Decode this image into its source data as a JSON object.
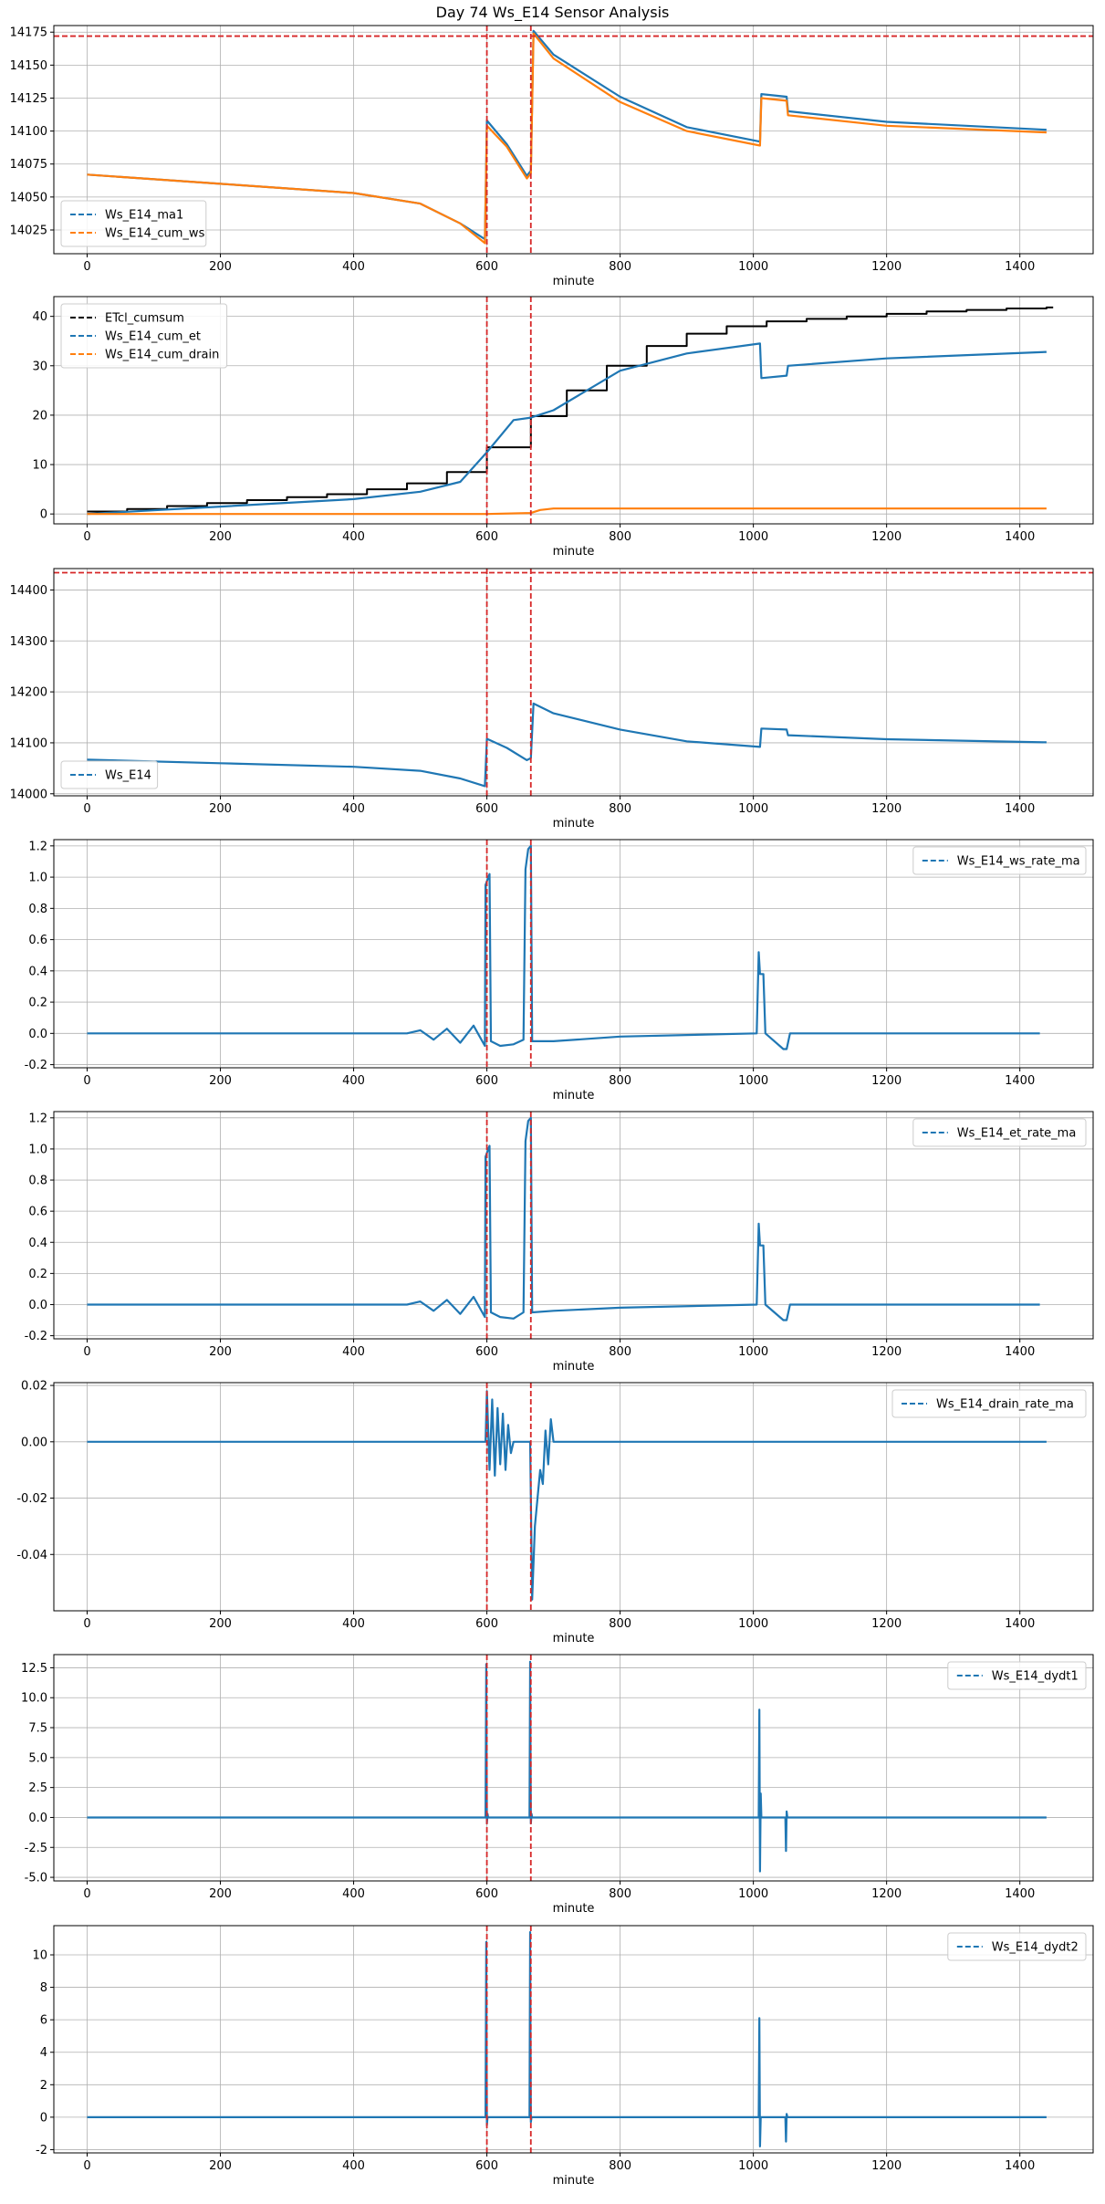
{
  "figure": {
    "title": "Day 74 Ws_E14 Sensor Analysis"
  },
  "colors": {
    "blue": "#1f77b4",
    "orange": "#ff7f0e",
    "black": "#000000",
    "red": "#d62728",
    "grid": "#b0b0b0"
  },
  "chart_data": [
    {
      "type": "line",
      "id": "p1",
      "xlabel": "minute",
      "ylabel": "",
      "xlim": [
        -50,
        1510
      ],
      "ylim": [
        14007,
        14180
      ],
      "xticks": [
        0,
        200,
        400,
        600,
        800,
        1000,
        1200,
        1400
      ],
      "yticks": [
        14025,
        14050,
        14075,
        14100,
        14125,
        14150,
        14175
      ],
      "legend_loc": "lower-left",
      "vlines": [
        600,
        666
      ],
      "hline": 14172,
      "series": [
        {
          "name": "Ws_E14_ma1",
          "color": "blue",
          "x": [
            0,
            200,
            400,
            500,
            560,
            597,
            600,
            630,
            660,
            666,
            670,
            700,
            800,
            900,
            1010,
            1012,
            1050,
            1052,
            1200,
            1440
          ],
          "y": [
            14067,
            14060,
            14053,
            14045,
            14030,
            14018,
            14108,
            14090,
            14066,
            14070,
            14176,
            14158,
            14126,
            14103,
            14092,
            14128,
            14126,
            14115,
            14107,
            14101
          ]
        },
        {
          "name": "Ws_E14_cum_ws",
          "color": "orange",
          "x": [
            0,
            200,
            400,
            500,
            560,
            597,
            600,
            630,
            660,
            666,
            670,
            700,
            800,
            900,
            1010,
            1012,
            1050,
            1052,
            1200,
            1440
          ],
          "y": [
            14067,
            14060,
            14053,
            14045,
            14030,
            14015,
            14104,
            14088,
            14064,
            14068,
            14174,
            14155,
            14122,
            14100,
            14089,
            14125,
            14123,
            14112,
            14104,
            14099
          ]
        }
      ]
    },
    {
      "type": "line",
      "id": "p2",
      "xlabel": "minute",
      "ylabel": "",
      "xlim": [
        -50,
        1510
      ],
      "ylim": [
        -2,
        44
      ],
      "xticks": [
        0,
        200,
        400,
        600,
        800,
        1000,
        1200,
        1400
      ],
      "yticks": [
        0,
        10,
        20,
        30,
        40
      ],
      "legend_loc": "upper-left",
      "vlines": [
        600,
        666
      ],
      "series": [
        {
          "name": "ETcl_cumsum",
          "color": "black",
          "step": true,
          "x": [
            0,
            60,
            120,
            180,
            240,
            300,
            360,
            420,
            480,
            540,
            600,
            666,
            720,
            780,
            840,
            900,
            960,
            1020,
            1080,
            1140,
            1200,
            1260,
            1320,
            1380,
            1440
          ],
          "y": [
            0.5,
            1.0,
            1.6,
            2.2,
            2.8,
            3.4,
            4.0,
            5.0,
            6.2,
            8.5,
            13.5,
            19.8,
            25.0,
            30.0,
            34.0,
            36.5,
            38.0,
            39.0,
            39.5,
            40.0,
            40.5,
            41.0,
            41.3,
            41.6,
            41.8
          ]
        },
        {
          "name": "Ws_E14_cum_et",
          "color": "blue",
          "x": [
            0,
            200,
            400,
            500,
            560,
            600,
            640,
            666,
            700,
            800,
            900,
            1010,
            1012,
            1050,
            1052,
            1200,
            1440
          ],
          "y": [
            0,
            1.5,
            3.0,
            4.5,
            6.5,
            12.5,
            19.0,
            19.5,
            21.0,
            29.0,
            32.5,
            34.5,
            27.5,
            28.0,
            30.0,
            31.5,
            32.8
          ]
        },
        {
          "name": "Ws_E14_cum_drain",
          "color": "orange",
          "x": [
            0,
            600,
            666,
            680,
            700,
            1440
          ],
          "y": [
            0,
            0,
            0.2,
            0.8,
            1.1,
            1.1
          ]
        }
      ]
    },
    {
      "type": "line",
      "id": "p3",
      "xlabel": "minute",
      "ylabel": "",
      "xlim": [
        -50,
        1510
      ],
      "ylim": [
        13996,
        14442
      ],
      "xticks": [
        0,
        200,
        400,
        600,
        800,
        1000,
        1200,
        1400
      ],
      "yticks": [
        14000,
        14100,
        14200,
        14300,
        14400
      ],
      "legend_loc": "lower-left",
      "vlines": [
        600,
        666
      ],
      "hline": 14434,
      "series": [
        {
          "name": "Ws_E14",
          "color": "blue",
          "x": [
            0,
            200,
            400,
            500,
            560,
            597,
            600,
            630,
            660,
            666,
            670,
            700,
            800,
            900,
            1010,
            1012,
            1050,
            1052,
            1200,
            1440
          ],
          "y": [
            14067,
            14060,
            14053,
            14045,
            14030,
            14015,
            14108,
            14090,
            14066,
            14070,
            14177,
            14158,
            14126,
            14103,
            14092,
            14128,
            14126,
            14115,
            14107,
            14101
          ]
        }
      ]
    },
    {
      "type": "line",
      "id": "p4",
      "xlabel": "minute",
      "ylabel": "",
      "xlim": [
        -50,
        1510
      ],
      "ylim": [
        -0.22,
        1.24
      ],
      "xticks": [
        0,
        200,
        400,
        600,
        800,
        1000,
        1200,
        1400
      ],
      "yticks": [
        -0.2,
        0.0,
        0.2,
        0.4,
        0.6,
        0.8,
        1.0,
        1.2
      ],
      "ytick_labels": [
        "-0.2",
        "0.0",
        "0.2",
        "0.4",
        "0.6",
        "0.8",
        "1.0",
        "1.2"
      ],
      "legend_loc": "upper-right",
      "vlines": [
        600,
        666
      ],
      "series": [
        {
          "name": "Ws_E14_ws_rate_ma",
          "color": "blue",
          "x": [
            0,
            480,
            500,
            520,
            540,
            560,
            580,
            597,
            598,
            604,
            606,
            620,
            640,
            655,
            658,
            662,
            666,
            668,
            700,
            800,
            1005,
            1008,
            1010,
            1015,
            1018,
            1045,
            1050,
            1055,
            1430
          ],
          "y": [
            0,
            0,
            0.02,
            -0.04,
            0.03,
            -0.06,
            0.05,
            -0.08,
            0.95,
            1.02,
            -0.05,
            -0.08,
            -0.07,
            -0.04,
            1.05,
            1.18,
            1.2,
            -0.05,
            -0.05,
            -0.02,
            0,
            0.52,
            0.38,
            0.38,
            0,
            -0.1,
            -0.1,
            0,
            0
          ]
        }
      ]
    },
    {
      "type": "line",
      "id": "p5",
      "xlabel": "minute",
      "ylabel": "",
      "xlim": [
        -50,
        1510
      ],
      "ylim": [
        -0.22,
        1.24
      ],
      "xticks": [
        0,
        200,
        400,
        600,
        800,
        1000,
        1200,
        1400
      ],
      "yticks": [
        -0.2,
        0.0,
        0.2,
        0.4,
        0.6,
        0.8,
        1.0,
        1.2
      ],
      "ytick_labels": [
        "-0.2",
        "0.0",
        "0.2",
        "0.4",
        "0.6",
        "0.8",
        "1.0",
        "1.2"
      ],
      "legend_loc": "upper-right",
      "vlines": [
        600,
        666
      ],
      "series": [
        {
          "name": "Ws_E14_et_rate_ma",
          "color": "blue",
          "x": [
            0,
            480,
            500,
            520,
            540,
            560,
            580,
            597,
            598,
            604,
            606,
            620,
            640,
            655,
            658,
            662,
            666,
            668,
            700,
            800,
            1005,
            1008,
            1010,
            1015,
            1018,
            1045,
            1050,
            1055,
            1430
          ],
          "y": [
            0,
            0,
            0.02,
            -0.04,
            0.03,
            -0.06,
            0.05,
            -0.08,
            0.95,
            1.02,
            -0.05,
            -0.08,
            -0.09,
            -0.05,
            1.05,
            1.18,
            1.2,
            -0.05,
            -0.04,
            -0.02,
            0,
            0.52,
            0.38,
            0.38,
            0,
            -0.1,
            -0.1,
            0,
            0
          ]
        }
      ]
    },
    {
      "type": "line",
      "id": "p6",
      "xlabel": "minute",
      "ylabel": "",
      "xlim": [
        -50,
        1510
      ],
      "ylim": [
        -0.06,
        0.021
      ],
      "xticks": [
        0,
        200,
        400,
        600,
        800,
        1000,
        1200,
        1400
      ],
      "yticks": [
        -0.04,
        -0.02,
        0.0,
        0.02
      ],
      "ytick_labels": [
        "-0.04",
        "-0.02",
        "0.00",
        "0.02"
      ],
      "legend_loc": "upper-right",
      "vlines": [
        600,
        666
      ],
      "series": [
        {
          "name": "Ws_E14_drain_rate_ma",
          "color": "blue",
          "x": [
            0,
            598,
            600,
            604,
            608,
            612,
            616,
            620,
            624,
            628,
            632,
            636,
            640,
            665,
            668,
            672,
            676,
            680,
            684,
            688,
            692,
            696,
            700,
            1440
          ],
          "y": [
            0,
            0,
            0.018,
            -0.01,
            0.015,
            -0.012,
            0.012,
            -0.008,
            0.01,
            -0.01,
            0.006,
            -0.004,
            0,
            0,
            -0.056,
            -0.03,
            -0.02,
            -0.01,
            -0.015,
            0.004,
            -0.008,
            0.008,
            0,
            0
          ]
        }
      ]
    },
    {
      "type": "line",
      "id": "p7",
      "xlabel": "minute",
      "ylabel": "",
      "xlim": [
        -50,
        1510
      ],
      "ylim": [
        -5.3,
        13.6
      ],
      "xticks": [
        0,
        200,
        400,
        600,
        800,
        1000,
        1200,
        1400
      ],
      "yticks": [
        -5.0,
        -2.5,
        0.0,
        2.5,
        5.0,
        7.5,
        10.0,
        12.5
      ],
      "ytick_labels": [
        "-5.0",
        "-2.5",
        "0.0",
        "2.5",
        "5.0",
        "7.5",
        "10.0",
        "12.5"
      ],
      "legend_loc": "upper-right",
      "vlines": [
        600,
        666
      ],
      "series": [
        {
          "name": "Ws_E14_dydt1",
          "color": "blue",
          "x": [
            0,
            598,
            599,
            600,
            601,
            602,
            664,
            665,
            666,
            667,
            668,
            1008,
            1009,
            1010,
            1011,
            1012,
            1048,
            1049,
            1050,
            1051,
            1440
          ],
          "y": [
            0,
            0,
            12.8,
            -0.5,
            0.3,
            0,
            0,
            13.0,
            -0.5,
            0.3,
            0,
            0,
            9.0,
            -4.5,
            2.0,
            0,
            0,
            -2.8,
            0.5,
            0,
            0
          ]
        }
      ]
    },
    {
      "type": "line",
      "id": "p8",
      "xlabel": "minute",
      "ylabel": "",
      "xlim": [
        -50,
        1510
      ],
      "ylim": [
        -2.2,
        11.8
      ],
      "xticks": [
        0,
        200,
        400,
        600,
        800,
        1000,
        1200,
        1400
      ],
      "yticks": [
        -2,
        0,
        2,
        4,
        6,
        8,
        10
      ],
      "legend_loc": "upper-right",
      "vlines": [
        600,
        666
      ],
      "series": [
        {
          "name": "Ws_E14_dydt2",
          "color": "blue",
          "x": [
            0,
            598,
            599,
            600,
            601,
            664,
            665,
            666,
            667,
            1008,
            1009,
            1010,
            1011,
            1048,
            1049,
            1050,
            1051,
            1440
          ],
          "y": [
            0,
            0,
            10.8,
            -0.5,
            0,
            0,
            11.4,
            -0.3,
            0,
            0,
            6.1,
            -1.8,
            0,
            0,
            -1.5,
            0.2,
            0,
            0
          ]
        }
      ]
    }
  ]
}
